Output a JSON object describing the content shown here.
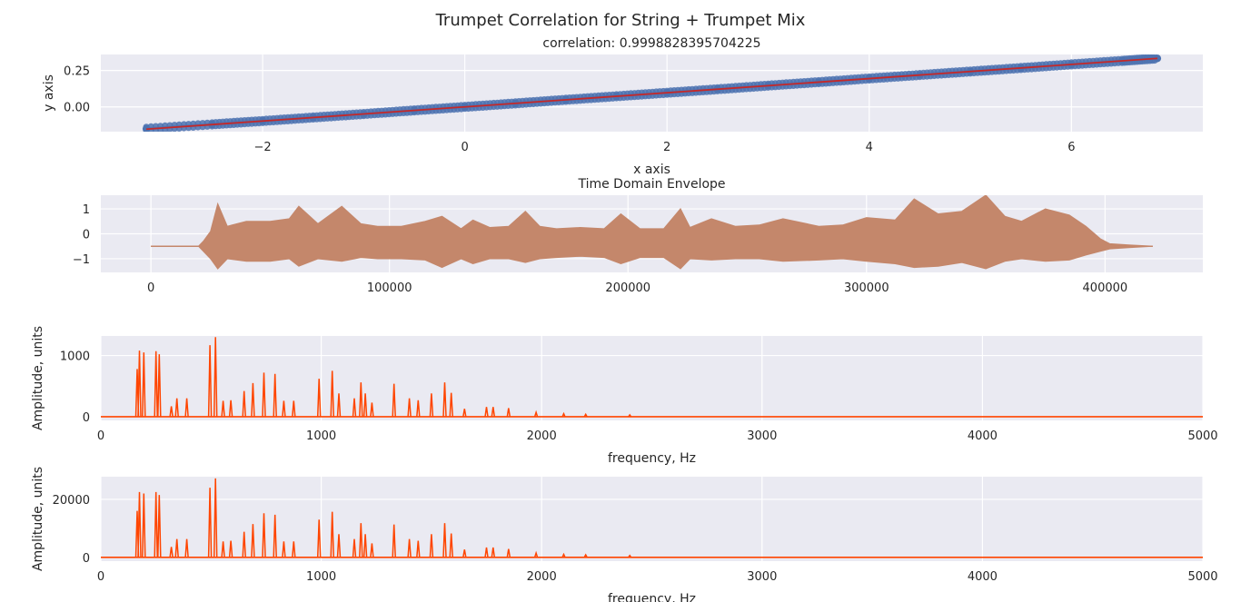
{
  "figure": {
    "title": "Trumpet Correlation for String + Trumpet Mix"
  },
  "colors": {
    "background": "#eaeaf2",
    "grid": "#ffffff",
    "scatter": "#4c72b0",
    "fit_line": "#c62828",
    "envelope": "#c4876b",
    "spectrum": "#ff4500",
    "text": "#262626"
  },
  "chart_data": [
    {
      "id": "correlation",
      "type": "scatter",
      "title": "correlation: 0.9998828395704225",
      "xlabel": "x axis",
      "ylabel": "y axis",
      "xlim": [
        -3.6,
        7.3
      ],
      "ylim": [
        -0.17,
        0.36
      ],
      "xticks": [
        -2,
        0,
        2,
        4,
        6
      ],
      "xtick_labels": [
        "−2",
        "0",
        "2",
        "4",
        "6"
      ],
      "yticks": [
        0.0,
        0.25
      ],
      "ytick_labels": [
        "0.00",
        "0.25"
      ],
      "grid": true,
      "series": [
        {
          "type": "scatter",
          "x": [
            -3.15,
            -2.5,
            -2.0,
            -1.5,
            -1.0,
            -0.5,
            0.0,
            0.5,
            1.0,
            1.5,
            2.0,
            2.5,
            3.0,
            3.5,
            4.0,
            4.5,
            5.0,
            5.5,
            6.0,
            6.5,
            6.85
          ],
          "y": [
            -0.15,
            -0.12,
            -0.097,
            -0.073,
            -0.049,
            -0.024,
            0.0,
            0.024,
            0.049,
            0.073,
            0.097,
            0.121,
            0.146,
            0.17,
            0.195,
            0.219,
            0.243,
            0.267,
            0.292,
            0.316,
            0.333
          ]
        },
        {
          "type": "line",
          "x": [
            -3.15,
            6.85
          ],
          "y": [
            -0.153,
            0.333
          ]
        }
      ]
    },
    {
      "id": "envelope",
      "type": "area",
      "title": "Time Domain Envelope",
      "xlabel": "",
      "ylabel": "",
      "xlim": [
        -21000,
        441000
      ],
      "ylim": [
        -1.55,
        1.55
      ],
      "xticks": [
        0,
        100000,
        200000,
        300000,
        400000
      ],
      "xtick_labels": [
        "0",
        "100000",
        "200000",
        "300000",
        "400000"
      ],
      "yticks": [
        -1,
        0,
        1
      ],
      "ytick_labels": [
        "−1",
        "0",
        "1"
      ],
      "grid": true,
      "baseline": -0.5,
      "x": [
        0,
        20000,
        22000,
        25000,
        28000,
        32000,
        40000,
        50000,
        58000,
        62000,
        70000,
        80000,
        88000,
        95000,
        105000,
        115000,
        122000,
        130000,
        135000,
        142000,
        150000,
        157000,
        163000,
        170000,
        180000,
        190000,
        197000,
        205000,
        215000,
        222000,
        226000,
        235000,
        245000,
        255000,
        265000,
        280000,
        290000,
        300000,
        312000,
        320000,
        330000,
        340000,
        350000,
        358000,
        365000,
        375000,
        385000,
        392000,
        398000,
        402000,
        410000,
        420000
      ],
      "upper": [
        -0.5,
        -0.5,
        -0.3,
        0.1,
        1.2,
        0.3,
        0.5,
        0.5,
        0.6,
        1.1,
        0.4,
        1.1,
        0.4,
        0.3,
        0.3,
        0.5,
        0.7,
        0.2,
        0.55,
        0.25,
        0.3,
        0.9,
        0.3,
        0.2,
        0.25,
        0.2,
        0.8,
        0.2,
        0.2,
        1.0,
        0.25,
        0.6,
        0.3,
        0.35,
        0.6,
        0.3,
        0.35,
        0.65,
        0.55,
        1.4,
        0.8,
        0.9,
        1.55,
        0.7,
        0.5,
        1.0,
        0.75,
        0.3,
        -0.2,
        -0.4,
        -0.45,
        -0.5
      ],
      "lower": [
        -0.5,
        -0.5,
        -0.7,
        -1.0,
        -1.4,
        -1.0,
        -1.1,
        -1.1,
        -1.0,
        -1.3,
        -1.0,
        -1.1,
        -0.95,
        -1.0,
        -1.0,
        -1.05,
        -1.35,
        -1.0,
        -1.2,
        -1.0,
        -1.0,
        -1.15,
        -1.0,
        -0.95,
        -0.9,
        -0.95,
        -1.2,
        -0.95,
        -0.95,
        -1.4,
        -1.0,
        -1.05,
        -1.0,
        -1.0,
        -1.1,
        -1.05,
        -1.0,
        -1.1,
        -1.2,
        -1.35,
        -1.3,
        -1.15,
        -1.4,
        -1.1,
        -1.0,
        -1.1,
        -1.05,
        -0.85,
        -0.7,
        -0.6,
        -0.55,
        -0.5
      ]
    },
    {
      "id": "spectrum_1",
      "type": "line",
      "title": "",
      "xlabel": "frequency, Hz",
      "ylabel": "Amplitude, units",
      "xlim": [
        0,
        5000
      ],
      "ylim": [
        -60,
        1320
      ],
      "xticks": [
        0,
        1000,
        2000,
        3000,
        4000,
        5000
      ],
      "xtick_labels": [
        "0",
        "1000",
        "2000",
        "3000",
        "4000",
        "5000"
      ],
      "yticks": [
        0,
        1000
      ],
      "ytick_labels": [
        "0",
        "1000"
      ],
      "grid": true,
      "peaks": {
        "freq": [
          165,
          175,
          195,
          250,
          265,
          320,
          345,
          390,
          495,
          520,
          555,
          590,
          650,
          690,
          740,
          790,
          830,
          875,
          990,
          1050,
          1080,
          1150,
          1180,
          1200,
          1230,
          1330,
          1400,
          1440,
          1500,
          1560,
          1590,
          1650,
          1750,
          1780,
          1850,
          1975,
          2100,
          2200,
          2400
        ],
        "amp": [
          780,
          1080,
          1050,
          1070,
          1020,
          170,
          300,
          300,
          1170,
          1300,
          260,
          270,
          420,
          550,
          720,
          700,
          260,
          260,
          620,
          750,
          380,
          300,
          560,
          380,
          230,
          540,
          300,
          270,
          380,
          560,
          390,
          130,
          160,
          160,
          140,
          70,
          50,
          40,
          30
        ]
      }
    },
    {
      "id": "spectrum_2",
      "type": "line",
      "title": "",
      "xlabel": "frequency, Hz",
      "ylabel": "Amplitude, units",
      "xlim": [
        0,
        5000
      ],
      "ylim": [
        -1300,
        27800
      ],
      "xticks": [
        0,
        1000,
        2000,
        3000,
        4000,
        5000
      ],
      "xtick_labels": [
        "0",
        "1000",
        "2000",
        "3000",
        "4000",
        "5000"
      ],
      "yticks": [
        0,
        20000
      ],
      "ytick_labels": [
        "0",
        "20000"
      ],
      "grid": true,
      "peaks": {
        "freq": [
          165,
          175,
          195,
          250,
          265,
          320,
          345,
          390,
          495,
          520,
          555,
          590,
          650,
          690,
          740,
          790,
          830,
          875,
          990,
          1050,
          1080,
          1150,
          1180,
          1200,
          1230,
          1330,
          1400,
          1440,
          1500,
          1560,
          1590,
          1650,
          1750,
          1780,
          1850,
          1975,
          2100,
          2200,
          2400
        ],
        "amp": [
          16000,
          22500,
          22000,
          22500,
          21500,
          3600,
          6300,
          6300,
          24000,
          27200,
          5500,
          5700,
          8800,
          11500,
          15200,
          14700,
          5500,
          5500,
          13000,
          15700,
          8000,
          6300,
          11800,
          8000,
          4800,
          11300,
          6300,
          5700,
          8000,
          11800,
          8200,
          2700,
          3400,
          3400,
          2900,
          1500,
          1050,
          850,
          650
        ]
      }
    }
  ]
}
